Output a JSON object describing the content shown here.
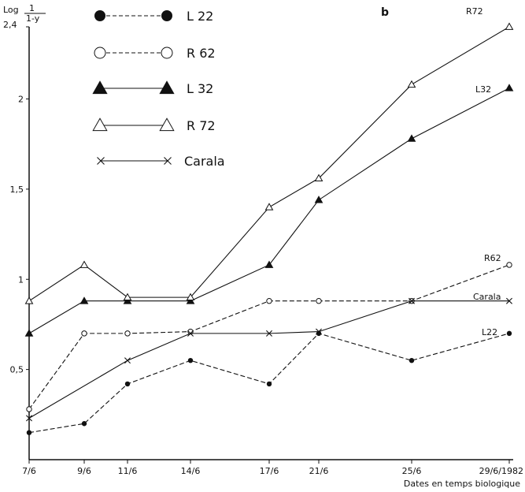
{
  "chart_data": {
    "type": "line",
    "panel_label": "b",
    "ylabel": {
      "prefix": "Log",
      "numerator": "1",
      "denominator": "1-y"
    },
    "xlabel": "Dates en temps biologique",
    "x_categories": [
      "7/6",
      "9/6",
      "11/6",
      "14/6",
      "17/6",
      "21/6",
      "25/6",
      "29/6/1982"
    ],
    "y_ticks": [
      "0,5",
      "1",
      "1,5",
      "2",
      "2,4"
    ],
    "ylim": [
      0,
      2.4
    ],
    "grid": false,
    "legend_position": "top-left",
    "series": [
      {
        "name": "L 22",
        "end_label": "L22",
        "marker": "filled-circle",
        "line_style": "dashed",
        "values": [
          0.15,
          0.2,
          0.42,
          0.55,
          0.42,
          0.7,
          0.55,
          0.7
        ]
      },
      {
        "name": "R 62",
        "end_label": "R62",
        "marker": "open-circle",
        "line_style": "dashed",
        "values": [
          0.28,
          0.7,
          0.7,
          0.71,
          0.88,
          0.88,
          0.88,
          1.08
        ]
      },
      {
        "name": "L 32",
        "end_label": "L32",
        "marker": "filled-triangle",
        "line_style": "solid",
        "values": [
          0.7,
          0.88,
          0.88,
          0.88,
          1.08,
          1.44,
          1.78,
          2.06
        ]
      },
      {
        "name": "R 72",
        "end_label": "R72",
        "marker": "open-triangle",
        "line_style": "solid",
        "values": [
          0.88,
          1.08,
          0.9,
          0.9,
          1.4,
          1.56,
          2.08,
          2.4
        ]
      },
      {
        "name": "Carala",
        "end_label": "Carala",
        "marker": "cross",
        "line_style": "solid",
        "values": [
          0.23,
          null,
          0.55,
          0.7,
          0.7,
          0.71,
          0.88,
          0.88
        ]
      }
    ]
  }
}
